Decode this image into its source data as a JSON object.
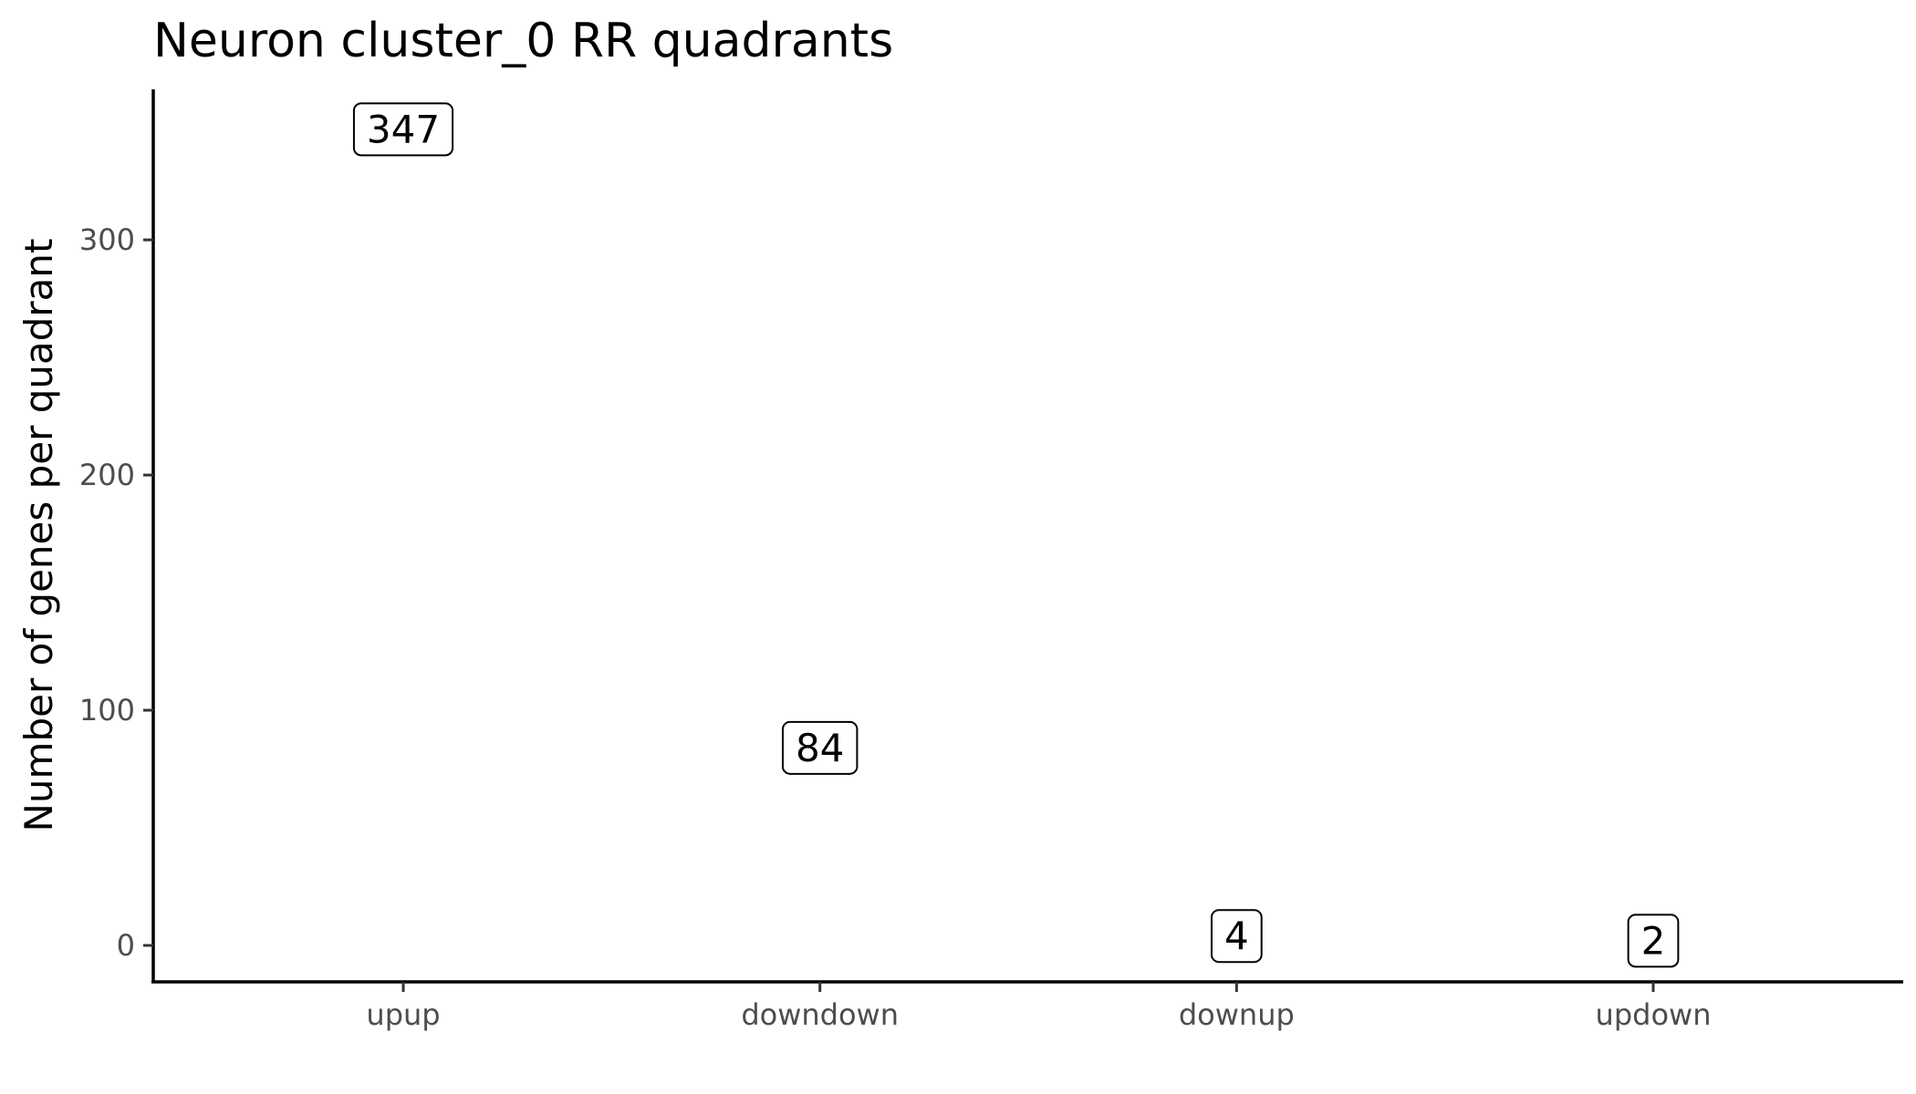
{
  "chart_data": {
    "type": "table",
    "title": "Neuron cluster_0 RR quadrants",
    "xlabel": "",
    "ylabel": "Number of genes per quadrant",
    "categories": [
      "upup",
      "downdown",
      "downup",
      "updown"
    ],
    "values": [
      347,
      84,
      4,
      2
    ],
    "labels": [
      "347",
      "84",
      "4",
      "2"
    ],
    "yticks": [
      0,
      100,
      200,
      300
    ],
    "ytick_labels": [
      "0",
      "100",
      "200",
      "300"
    ],
    "ylim": [
      -15.5,
      364
    ],
    "grid": false,
    "legend": "none"
  }
}
